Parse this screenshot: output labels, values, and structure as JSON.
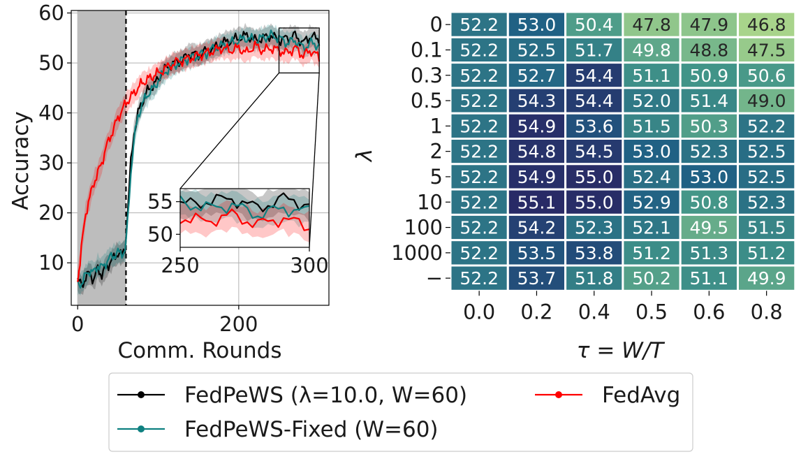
{
  "chart_data": [
    {
      "type": "line",
      "xlabel": "Comm. Rounds",
      "ylabel": "Accuracy",
      "xlim": [
        -8,
        312
      ],
      "ylim": [
        1.5,
        60.5
      ],
      "xticks": [
        0,
        200
      ],
      "yticks": [
        10,
        20,
        30,
        40,
        50,
        60
      ],
      "grid": true,
      "warmup_window": [
        0,
        60
      ],
      "warmup_boundary": 60,
      "series": [
        {
          "name": "FedPeWS (λ=10.0, W=60)",
          "color": "#000000",
          "x": [
            0,
            5,
            10,
            15,
            20,
            25,
            30,
            35,
            40,
            45,
            50,
            55,
            59,
            62,
            66,
            70,
            75,
            80,
            85,
            90,
            95,
            100,
            110,
            120,
            130,
            140,
            150,
            160,
            170,
            180,
            190,
            200,
            210,
            220,
            230,
            240,
            250,
            260,
            270,
            280,
            290,
            300
          ],
          "y": [
            6.5,
            5.5,
            7,
            8,
            6.5,
            9,
            7.5,
            9,
            10,
            11,
            12,
            11.5,
            13,
            20,
            30,
            36,
            40,
            42,
            44,
            45,
            45.5,
            47,
            49,
            50,
            50.5,
            52,
            51.5,
            52.5,
            53,
            54,
            54.5,
            55,
            55.5,
            54.5,
            55,
            55.5,
            54.5,
            55,
            55.5,
            54,
            55.5,
            54.5
          ]
        },
        {
          "name": "FedPeWS-Fixed (W=60)",
          "color": "#0e8080",
          "x": [
            0,
            5,
            10,
            15,
            20,
            25,
            30,
            35,
            40,
            45,
            50,
            55,
            59,
            62,
            66,
            70,
            75,
            80,
            85,
            90,
            95,
            100,
            110,
            120,
            130,
            140,
            150,
            160,
            170,
            180,
            190,
            200,
            210,
            220,
            230,
            240,
            250,
            260,
            270,
            280,
            290,
            300
          ],
          "y": [
            5.5,
            6,
            7.5,
            8.5,
            8,
            9.5,
            9,
            10,
            11,
            11.5,
            12,
            12,
            12.5,
            18,
            28,
            35,
            39,
            42,
            43,
            44.5,
            45,
            46.5,
            48.5,
            49.5,
            50.5,
            51,
            51.5,
            52,
            53,
            53.5,
            54,
            54.5,
            55,
            54.5,
            55,
            55.5,
            55,
            54,
            54.5,
            53,
            54,
            53.5
          ]
        },
        {
          "name": "FedAvg",
          "color": "#ff0000",
          "x": [
            0,
            3,
            6,
            10,
            15,
            20,
            25,
            30,
            35,
            40,
            45,
            50,
            55,
            60,
            65,
            70,
            75,
            80,
            85,
            90,
            95,
            100,
            110,
            120,
            130,
            140,
            150,
            160,
            170,
            180,
            190,
            200,
            210,
            220,
            230,
            240,
            250,
            260,
            270,
            280,
            290,
            300
          ],
          "y": [
            7,
            10,
            15,
            20,
            23,
            26,
            28,
            30,
            33,
            35,
            37,
            39,
            40.5,
            42,
            43,
            44,
            45,
            46,
            46.5,
            47,
            47.5,
            48,
            49,
            50,
            50.5,
            51,
            51.5,
            52,
            52.5,
            53,
            52.5,
            53,
            52,
            53.5,
            52.5,
            53,
            52.5,
            52,
            53,
            51.5,
            52.5,
            51
          ]
        }
      ],
      "inset": {
        "xlim": [
          250,
          300
        ],
        "ylim": [
          48,
          57
        ],
        "xticks": [
          250,
          300
        ],
        "yticks": [
          50,
          55
        ]
      }
    },
    {
      "type": "heatmap",
      "xlabel": "τ = W/T",
      "ylabel": "λ",
      "x_labels": [
        "0.0",
        "0.2",
        "0.4",
        "0.5",
        "0.6",
        "0.8"
      ],
      "y_labels": [
        "0",
        "0.1",
        "0.3",
        "0.5",
        "1",
        "2",
        "5",
        "10",
        "100",
        "1000",
        "−"
      ],
      "values": [
        [
          52.2,
          53.0,
          50.4,
          47.8,
          47.9,
          46.8
        ],
        [
          52.2,
          52.5,
          51.7,
          49.8,
          48.8,
          47.5
        ],
        [
          52.2,
          52.7,
          54.4,
          51.1,
          50.9,
          50.6
        ],
        [
          52.2,
          54.3,
          54.4,
          52.0,
          51.4,
          49.0
        ],
        [
          52.2,
          54.9,
          53.6,
          51.5,
          50.3,
          52.2
        ],
        [
          52.2,
          54.8,
          54.5,
          53.0,
          52.3,
          52.5
        ],
        [
          52.2,
          54.9,
          55.0,
          52.4,
          53.0,
          52.5
        ],
        [
          52.2,
          55.1,
          55.0,
          52.9,
          50.8,
          52.3
        ],
        [
          52.2,
          54.2,
          52.3,
          52.1,
          49.5,
          51.5
        ],
        [
          52.2,
          53.5,
          53.8,
          51.2,
          51.3,
          51.2
        ],
        [
          52.2,
          53.7,
          51.8,
          50.2,
          51.1,
          49.9
        ]
      ],
      "colormap": "crest",
      "vmin": 46.8,
      "vmax": 55.1
    }
  ],
  "legend": {
    "placement": "bottom-center",
    "entries": [
      {
        "label": "FedPeWS (λ=10.0, W=60)",
        "color": "#000000"
      },
      {
        "label": "FedPeWS-Fixed (W=60)",
        "color": "#0e8080"
      },
      {
        "label": "FedAvg",
        "color": "#ff0000"
      }
    ]
  }
}
